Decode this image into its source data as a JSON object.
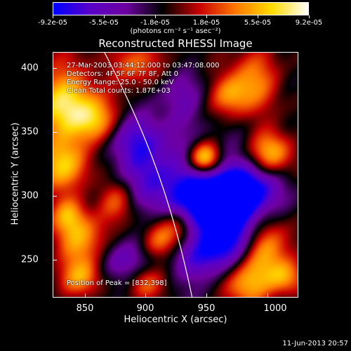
{
  "colorbar": {
    "ticks": [
      "-9.2e-05",
      "-5.5e-05",
      "-1.8e-05",
      "1.8e-05",
      "5.5e-05",
      "9.2e-05"
    ],
    "units_label": "(photons cm⁻² s⁻¹ asec⁻²)",
    "min": -9.2e-05,
    "max": 9.2e-05,
    "colors": [
      "#0000ff",
      "#5a00c8",
      "#6e00a0",
      "#000000",
      "#c80000",
      "#ff7800",
      "#ffdc00",
      "#ffffff"
    ]
  },
  "title": "Reconstructed RHESSI Image",
  "annotations": {
    "time": "27-Mar-2003 03:44:12.000 to 03:47:08.000",
    "detectors": "Detectors: 4F 5F 6F 7F 8F, Att 0",
    "energy": "Energy Range: 25.0 - 50.0 keV",
    "clean": "Clean     Total counts: 1.87E+03",
    "peak": "Position of Peak = [832,398]"
  },
  "axes": {
    "xlabel": "Heliocentric X (arcsec)",
    "ylabel": "Heliocentric Y (arcsec)",
    "xticks": [
      "850",
      "900",
      "950",
      "1000"
    ],
    "yticks": [
      "400",
      "350",
      "300",
      "250"
    ],
    "xrange": [
      828,
      1020
    ],
    "yrange": [
      218,
      410
    ]
  },
  "date": "11-Jun-2013 20:57"
}
